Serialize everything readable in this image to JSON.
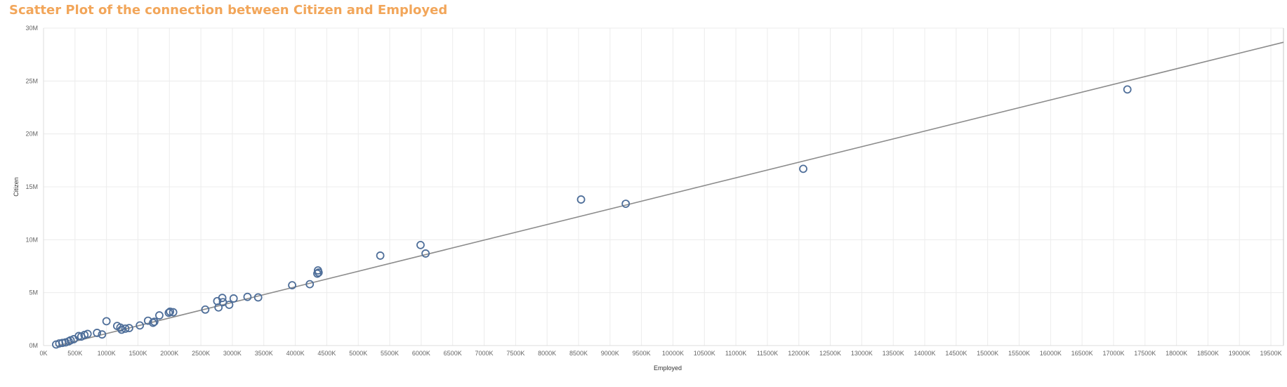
{
  "chart_data": {
    "type": "scatter",
    "title": "Scatter Plot of the connection between Citizen and Employed",
    "xlabel": "Employed",
    "ylabel": "Citizen",
    "xlim": [
      0,
      19700
    ],
    "ylim": [
      0,
      30
    ],
    "x_unit": "K",
    "y_unit": "M",
    "x_ticks": [
      "0K",
      "500K",
      "1000K",
      "1500K",
      "2000K",
      "2500K",
      "3000K",
      "3500K",
      "4000K",
      "4500K",
      "5000K",
      "5500K",
      "6000K",
      "6500K",
      "7000K",
      "7500K",
      "8000K",
      "8500K",
      "9000K",
      "9500K",
      "10000K",
      "10500K",
      "11000K",
      "11500K",
      "12000K",
      "12500K",
      "13000K",
      "13500K",
      "14000K",
      "14500K",
      "15000K",
      "15500K",
      "16000K",
      "16500K",
      "17000K",
      "17500K",
      "18000K",
      "18500K",
      "19000K",
      "19500K"
    ],
    "y_ticks": [
      "0M",
      "5M",
      "10M",
      "15M",
      "20M",
      "25M",
      "30M"
    ],
    "grid": true,
    "marker_color": "#4e6e99",
    "trend_color": "#8c8c8c",
    "trend_line": {
      "slope": 0.001472,
      "intercept": -0.34
    },
    "points": [
      {
        "x": 200,
        "y": 0.1
      },
      {
        "x": 250,
        "y": 0.2
      },
      {
        "x": 300,
        "y": 0.25
      },
      {
        "x": 350,
        "y": 0.3
      },
      {
        "x": 400,
        "y": 0.4
      },
      {
        "x": 430,
        "y": 0.5
      },
      {
        "x": 480,
        "y": 0.6
      },
      {
        "x": 560,
        "y": 0.9
      },
      {
        "x": 600,
        "y": 0.85
      },
      {
        "x": 650,
        "y": 1.0
      },
      {
        "x": 700,
        "y": 1.1
      },
      {
        "x": 850,
        "y": 1.2
      },
      {
        "x": 930,
        "y": 1.05
      },
      {
        "x": 1000,
        "y": 2.3
      },
      {
        "x": 1170,
        "y": 1.85
      },
      {
        "x": 1220,
        "y": 1.7
      },
      {
        "x": 1240,
        "y": 1.5
      },
      {
        "x": 1300,
        "y": 1.6
      },
      {
        "x": 1360,
        "y": 1.65
      },
      {
        "x": 1530,
        "y": 1.9
      },
      {
        "x": 1660,
        "y": 2.35
      },
      {
        "x": 1740,
        "y": 2.15
      },
      {
        "x": 1760,
        "y": 2.25
      },
      {
        "x": 1840,
        "y": 2.85
      },
      {
        "x": 1990,
        "y": 3.1
      },
      {
        "x": 2010,
        "y": 3.2
      },
      {
        "x": 2060,
        "y": 3.15
      },
      {
        "x": 2570,
        "y": 3.4
      },
      {
        "x": 2760,
        "y": 4.2
      },
      {
        "x": 2780,
        "y": 3.6
      },
      {
        "x": 2840,
        "y": 4.5
      },
      {
        "x": 2850,
        "y": 4.1
      },
      {
        "x": 2950,
        "y": 3.85
      },
      {
        "x": 3020,
        "y": 4.45
      },
      {
        "x": 3240,
        "y": 4.6
      },
      {
        "x": 3410,
        "y": 4.55
      },
      {
        "x": 3950,
        "y": 5.7
      },
      {
        "x": 4230,
        "y": 5.8
      },
      {
        "x": 4350,
        "y": 6.8
      },
      {
        "x": 4360,
        "y": 7.1
      },
      {
        "x": 4370,
        "y": 6.9
      },
      {
        "x": 5350,
        "y": 8.5
      },
      {
        "x": 5990,
        "y": 9.5
      },
      {
        "x": 6070,
        "y": 8.7
      },
      {
        "x": 8540,
        "y": 13.8
      },
      {
        "x": 9250,
        "y": 13.4
      },
      {
        "x": 12070,
        "y": 16.7
      },
      {
        "x": 17220,
        "y": 24.2
      }
    ]
  }
}
